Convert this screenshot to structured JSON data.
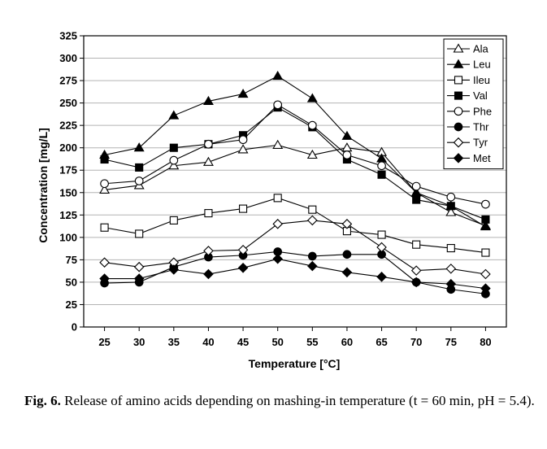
{
  "chart_data": {
    "type": "line",
    "title": "",
    "xlabel": "Temperature [°C]",
    "ylabel": "Concentration [mg/L]",
    "x": [
      25,
      30,
      35,
      40,
      45,
      50,
      55,
      60,
      65,
      70,
      75,
      80
    ],
    "xlim": [
      22,
      83
    ],
    "ylim": [
      0,
      325
    ],
    "yticks": [
      0,
      25,
      50,
      75,
      100,
      125,
      150,
      175,
      200,
      225,
      250,
      275,
      300,
      325
    ],
    "grid": "horizontal",
    "legend_position": "top-right",
    "series": [
      {
        "name": "Ala",
        "marker": "triangle-open",
        "values": [
          153,
          158,
          180,
          184,
          198,
          203,
          192,
          200,
          195,
          150,
          128,
          113
        ]
      },
      {
        "name": "Leu",
        "marker": "triangle-filled",
        "values": [
          192,
          200,
          236,
          252,
          260,
          280,
          255,
          213,
          188,
          150,
          135,
          112
        ]
      },
      {
        "name": "Ileu",
        "marker": "square-open",
        "values": [
          111,
          104,
          119,
          127,
          132,
          144,
          131,
          107,
          103,
          92,
          88,
          83
        ]
      },
      {
        "name": "Val",
        "marker": "square-filled",
        "values": [
          187,
          178,
          200,
          204,
          214,
          245,
          223,
          187,
          170,
          142,
          135,
          120
        ]
      },
      {
        "name": "Phe",
        "marker": "circle-open",
        "values": [
          160,
          163,
          186,
          204,
          209,
          248,
          225,
          192,
          180,
          157,
          145,
          137
        ]
      },
      {
        "name": "Thr",
        "marker": "circle-filled",
        "values": [
          49,
          50,
          67,
          78,
          80,
          84,
          79,
          81,
          81,
          50,
          42,
          37
        ]
      },
      {
        "name": "Tyr",
        "marker": "diamond-open",
        "values": [
          72,
          67,
          72,
          85,
          86,
          115,
          119,
          115,
          89,
          63,
          65,
          59
        ]
      },
      {
        "name": "Met",
        "marker": "diamond-filled",
        "values": [
          54,
          54,
          64,
          59,
          66,
          76,
          68,
          61,
          56,
          50,
          48,
          43
        ]
      }
    ]
  },
  "caption": {
    "label": "Fig. 6.",
    "text": " Release of amino acids depending on mashing-in temperature (t = 60 min, pH = 5.4)."
  }
}
